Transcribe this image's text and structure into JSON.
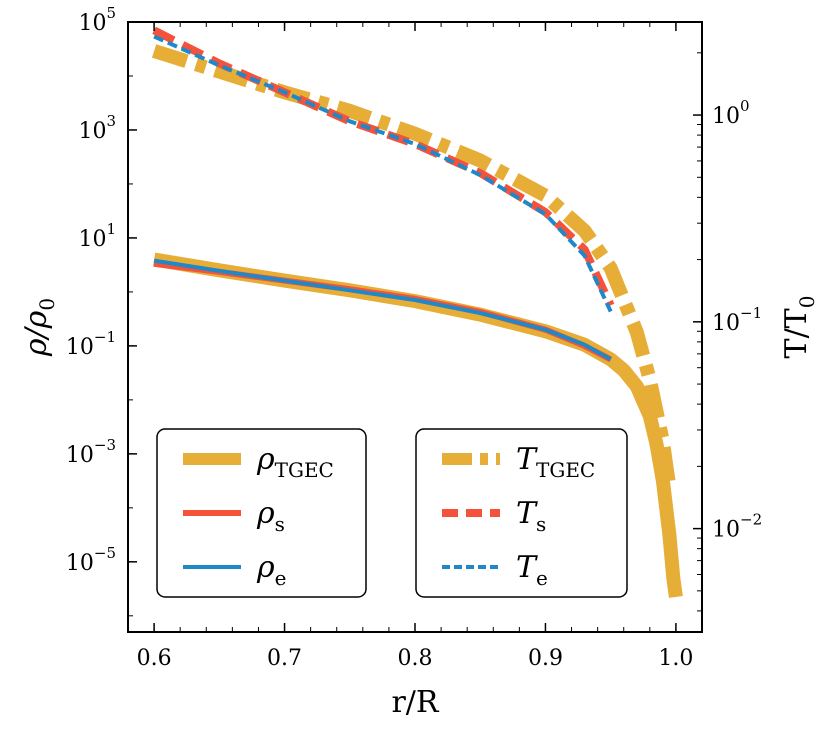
{
  "chart_data": {
    "type": "line",
    "xlabel": "r/R",
    "ylabel_left": "ρ/ρ",
    "ylabel_left_sub": "0",
    "ylabel_right": "T/T",
    "ylabel_right_sub": "0",
    "xlim": [
      0.58,
      1.02
    ],
    "ylim_left_log10": [
      -6.3,
      5.0
    ],
    "ylim_right_log10": [
      -2.5,
      0.45
    ],
    "x_ticks": [
      {
        "value": 0.6,
        "label": "0.6"
      },
      {
        "value": 0.7,
        "label": "0.7"
      },
      {
        "value": 0.8,
        "label": "0.8"
      },
      {
        "value": 0.9,
        "label": "0.9"
      },
      {
        "value": 1.0,
        "label": "1.0"
      }
    ],
    "y_left_ticks": [
      {
        "exp": 5,
        "base": "10",
        "sup": "5"
      },
      {
        "exp": 3,
        "base": "10",
        "sup": "3"
      },
      {
        "exp": 1,
        "base": "10",
        "sup": "1"
      },
      {
        "exp": -1,
        "base": "10",
        "sup": "−1"
      },
      {
        "exp": -3,
        "base": "10",
        "sup": "−3"
      },
      {
        "exp": -5,
        "base": "10",
        "sup": "−5"
      }
    ],
    "y_right_ticks": [
      {
        "exp": 0,
        "base": "10",
        "sup": "0"
      },
      {
        "exp": -1,
        "base": "10",
        "sup": "−1"
      },
      {
        "exp": -2,
        "base": "10",
        "sup": "−2"
      }
    ],
    "series": [
      {
        "name": "rho_TGEC",
        "axis": "left",
        "color": "#E6AD37",
        "style": "solid",
        "width": 14,
        "x": [
          0.6,
          0.65,
          0.7,
          0.75,
          0.8,
          0.85,
          0.9,
          0.93,
          0.95,
          0.96,
          0.97,
          0.98,
          0.985,
          0.99,
          0.995,
          0.998,
          1.0
        ],
        "log10y": [
          0.6,
          0.4,
          0.21,
          0.03,
          -0.17,
          -0.42,
          -0.73,
          -0.98,
          -1.25,
          -1.45,
          -1.75,
          -2.3,
          -2.8,
          -3.5,
          -4.5,
          -5.3,
          -5.65
        ]
      },
      {
        "name": "rho_s",
        "axis": "left",
        "color": "#F4523A",
        "style": "solid",
        "width": 6,
        "x": [
          0.6,
          0.65,
          0.7,
          0.75,
          0.8,
          0.85,
          0.9,
          0.93,
          0.95
        ],
        "log10y": [
          0.52,
          0.37,
          0.21,
          0.05,
          -0.13,
          -0.37,
          -0.7,
          -1.0,
          -1.25
        ]
      },
      {
        "name": "rho_e",
        "axis": "left",
        "color": "#1E88C8",
        "style": "solid",
        "width": 4,
        "x": [
          0.6,
          0.65,
          0.7,
          0.75,
          0.8,
          0.85,
          0.9,
          0.93,
          0.95
        ],
        "log10y": [
          0.58,
          0.39,
          0.21,
          0.03,
          -0.15,
          -0.39,
          -0.7,
          -0.98,
          -1.25
        ]
      },
      {
        "name": "T_TGEC",
        "axis": "right",
        "color": "#E6AD37",
        "style": "dashdot",
        "width": 14,
        "x": [
          0.6,
          0.65,
          0.7,
          0.75,
          0.8,
          0.85,
          0.9,
          0.93,
          0.95,
          0.97,
          0.98,
          0.99,
          0.995
        ],
        "log10y": [
          0.31,
          0.21,
          0.11,
          0.02,
          -0.09,
          -0.22,
          -0.39,
          -0.56,
          -0.74,
          -1.05,
          -1.28,
          -1.58,
          -1.8
        ]
      },
      {
        "name": "T_s",
        "axis": "right",
        "color": "#F4523A",
        "style": "dashed",
        "width": 8,
        "x": [
          0.6,
          0.65,
          0.7,
          0.75,
          0.8,
          0.85,
          0.9,
          0.93,
          0.95
        ],
        "log10y": [
          0.41,
          0.25,
          0.11,
          -0.03,
          -0.14,
          -0.28,
          -0.47,
          -0.65,
          -0.92
        ]
      },
      {
        "name": "T_e",
        "axis": "right",
        "color": "#1E88C8",
        "style": "dotted",
        "width": 4,
        "x": [
          0.6,
          0.65,
          0.7,
          0.75,
          0.8,
          0.85,
          0.9,
          0.93,
          0.95
        ],
        "log10y": [
          0.38,
          0.24,
          0.11,
          -0.03,
          -0.14,
          -0.29,
          -0.48,
          -0.68,
          -0.95
        ]
      }
    ],
    "legends": [
      {
        "location": "lower-left",
        "entries": [
          {
            "series": "rho_TGEC",
            "main": "ρ",
            "sub": "TGEC"
          },
          {
            "series": "rho_s",
            "main": "ρ",
            "sub": "s"
          },
          {
            "series": "rho_e",
            "main": "ρ",
            "sub": "e"
          }
        ]
      },
      {
        "location": "lower-center-right",
        "entries": [
          {
            "series": "T_TGEC",
            "main": "T",
            "sub": "TGEC"
          },
          {
            "series": "T_s",
            "main": "T",
            "sub": "s"
          },
          {
            "series": "T_e",
            "main": "T",
            "sub": "e"
          }
        ]
      }
    ]
  }
}
